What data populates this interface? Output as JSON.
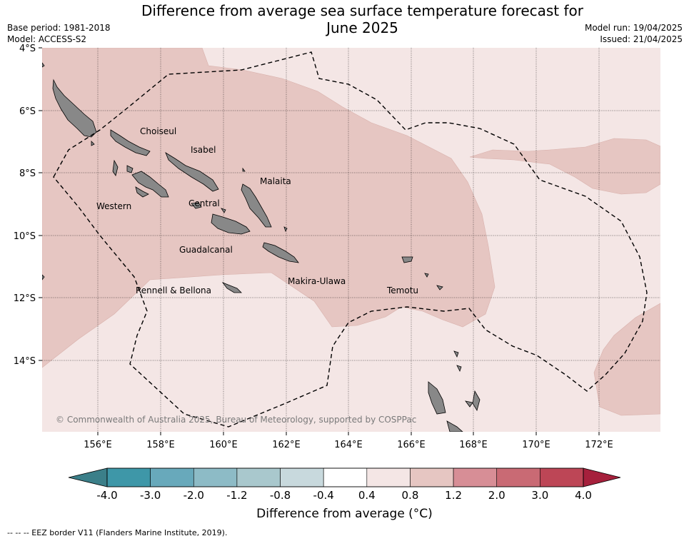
{
  "header": {
    "title_line1": "Difference from average sea surface temperature forecast for",
    "title_line2": "June 2025",
    "base_period": "Base period: 1981-2018",
    "model": "Model: ACCESS-S2",
    "model_run": "Model run: 19/04/2025",
    "issued": "Issued: 21/04/2025"
  },
  "map": {
    "latitude_labels": [
      "4°S",
      "6°S",
      "8°S",
      "10°S",
      "12°S",
      "14°S"
    ],
    "longitude_labels": [
      "156°E",
      "158°E",
      "160°E",
      "162°E",
      "164°E",
      "166°E",
      "168°E",
      "170°E",
      "172°E"
    ],
    "regions": [
      "Choiseul",
      "Isabel",
      "Malaita",
      "Western",
      "Central",
      "Guadalcanal",
      "Makira-Ulawa",
      "Rennell & Bellona",
      "Temotu"
    ],
    "copyright": "© Commonwealth of Australia 2025, Bureau of Meteorology, supported by COSPPac",
    "colors": {
      "anomaly_0_4_to_0_8": "#f4e6e5",
      "anomaly_0_8_to_1_2": "#e6c6c2",
      "land": "#888888",
      "eez_border": "#000000"
    }
  },
  "colorbar": {
    "ticks": [
      "-4.0",
      "-3.0",
      "-2.0",
      "-1.2",
      "-0.8",
      "-0.4",
      "0.4",
      "0.8",
      "1.2",
      "2.0",
      "3.0",
      "4.0"
    ],
    "colors": [
      "#3e97a8",
      "#68a9bb",
      "#8dbbc6",
      "#a9c8cd",
      "#c8d9dd",
      "#ffffff",
      "#f4e6e5",
      "#e6c6c2",
      "#d78e96",
      "#c96a74",
      "#bd4656"
    ],
    "under_color": "#3b7f89",
    "over_color": "#a6203c",
    "title": "Difference from average (°C)"
  },
  "footnote": "--  --  -- EEZ border V11 (Flanders Marine Institute, 2019)."
}
